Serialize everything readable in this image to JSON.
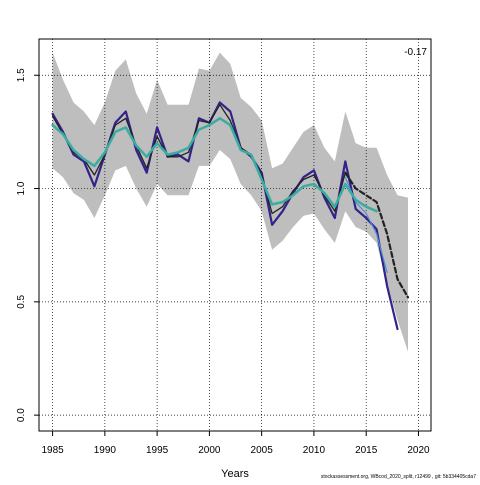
{
  "chart_data": {
    "type": "line",
    "title": "",
    "xlabel": "Years",
    "ylabel": "",
    "xlim": [
      1983.7,
      2021.2
    ],
    "ylim": [
      -0.07,
      1.66
    ],
    "xticks": [
      1985,
      1990,
      1995,
      2000,
      2005,
      2010,
      2015,
      2020
    ],
    "yticks": [
      0.0,
      0.5,
      1.0,
      1.5
    ],
    "ytick_labels": [
      "0.0",
      "0.5",
      "1.0",
      "1.5"
    ],
    "grid": true,
    "grid_style": "dotted",
    "annotation": "-0.17",
    "credit": "stockassessment.org, WBcod_2020_split, r12499 , git: 5b334405cda7",
    "confidence_band": {
      "color": "#bebebe",
      "x": [
        1985,
        1986,
        1987,
        1988,
        1989,
        1990,
        1991,
        1992,
        1993,
        1994,
        1995,
        1996,
        1997,
        1998,
        1999,
        2000,
        2001,
        2002,
        2003,
        2004,
        2005,
        2006,
        2007,
        2008,
        2009,
        2010,
        2011,
        2012,
        2013,
        2014,
        2015,
        2016,
        2017,
        2018,
        2019
      ],
      "upper": [
        1.6,
        1.48,
        1.38,
        1.34,
        1.28,
        1.38,
        1.52,
        1.57,
        1.42,
        1.33,
        1.48,
        1.37,
        1.37,
        1.37,
        1.53,
        1.52,
        1.6,
        1.55,
        1.4,
        1.36,
        1.3,
        1.09,
        1.11,
        1.18,
        1.25,
        1.28,
        1.18,
        1.12,
        1.34,
        1.2,
        1.18,
        1.18,
        1.06,
        0.97,
        0.96
      ],
      "lower": [
        1.09,
        1.05,
        0.98,
        0.95,
        0.87,
        0.97,
        1.08,
        1.1,
        1.0,
        0.92,
        1.02,
        0.97,
        0.97,
        0.97,
        1.1,
        1.1,
        1.17,
        1.13,
        1.02,
        0.97,
        0.9,
        0.73,
        0.77,
        0.83,
        0.88,
        0.89,
        0.82,
        0.76,
        0.9,
        0.83,
        0.81,
        0.76,
        0.58,
        0.42,
        0.28
      ]
    },
    "series": [
      {
        "color": "#332288",
        "width": 2.2,
        "dash": "",
        "x": [
          1985,
          1986,
          1987,
          1988,
          1989,
          1990,
          1991,
          1992,
          1993,
          1994,
          1995,
          1996,
          1997,
          1998,
          1999,
          2000,
          2001,
          2002,
          2003,
          2004,
          2005,
          2006,
          2007,
          2008,
          2009,
          2010,
          2011,
          2012,
          2013,
          2014,
          2015,
          2016,
          2017,
          2018
        ],
        "values": [
          1.33,
          1.25,
          1.15,
          1.12,
          1.01,
          1.15,
          1.29,
          1.34,
          1.17,
          1.07,
          1.27,
          1.14,
          1.15,
          1.12,
          1.31,
          1.29,
          1.38,
          1.34,
          1.18,
          1.14,
          1.07,
          0.84,
          0.9,
          0.98,
          1.05,
          1.08,
          0.96,
          0.87,
          1.12,
          0.91,
          0.87,
          0.82,
          0.57,
          0.38
        ]
      },
      {
        "color": "#4a8fd6",
        "width": 1.2,
        "dash": "",
        "x": [
          2013,
          2014,
          2015,
          2016,
          2017
        ],
        "values": [
          1.05,
          0.94,
          0.89,
          0.8,
          0.63
        ]
      },
      {
        "color": "#222222",
        "width": 1.3,
        "dash": "",
        "x": [
          1985,
          1986,
          1987,
          1988,
          1989,
          1990,
          1991,
          1992,
          1993,
          1994,
          1995,
          1996,
          1997,
          1998,
          1999,
          2000,
          2001,
          2002,
          2003,
          2004,
          2005,
          2006,
          2007,
          2008,
          2009,
          2010,
          2011,
          2012,
          2013
        ],
        "values": [
          1.32,
          1.24,
          1.16,
          1.13,
          1.06,
          1.15,
          1.28,
          1.31,
          1.19,
          1.09,
          1.23,
          1.14,
          1.14,
          1.16,
          1.3,
          1.29,
          1.37,
          1.3,
          1.18,
          1.15,
          1.06,
          0.89,
          0.92,
          0.99,
          1.04,
          1.06,
          0.97,
          0.9,
          1.07
        ]
      },
      {
        "color": "#222222",
        "width": 2.2,
        "dash": "5,3",
        "x": [
          2013,
          2014,
          2015,
          2016,
          2017,
          2018,
          2019
        ],
        "values": [
          1.07,
          1.0,
          0.97,
          0.94,
          0.8,
          0.6,
          0.52
        ]
      },
      {
        "color": "#3aada0",
        "width": 2.5,
        "dash": "",
        "x": [
          1985,
          1986,
          1987,
          1988,
          1989,
          1990,
          1991,
          1992,
          1993,
          1994,
          1995,
          1996,
          1997,
          1998,
          1999,
          2000,
          2001,
          2002,
          2003,
          2004,
          2005,
          2006,
          2007,
          2008,
          2009,
          2010,
          2011,
          2012,
          2013,
          2014,
          2015,
          2016
        ],
        "values": [
          1.28,
          1.24,
          1.17,
          1.13,
          1.1,
          1.16,
          1.25,
          1.27,
          1.19,
          1.14,
          1.2,
          1.15,
          1.16,
          1.18,
          1.26,
          1.28,
          1.31,
          1.28,
          1.17,
          1.15,
          1.04,
          0.93,
          0.94,
          0.97,
          1.01,
          1.02,
          0.98,
          0.92,
          1.02,
          0.95,
          0.92,
          0.9
        ]
      }
    ]
  }
}
